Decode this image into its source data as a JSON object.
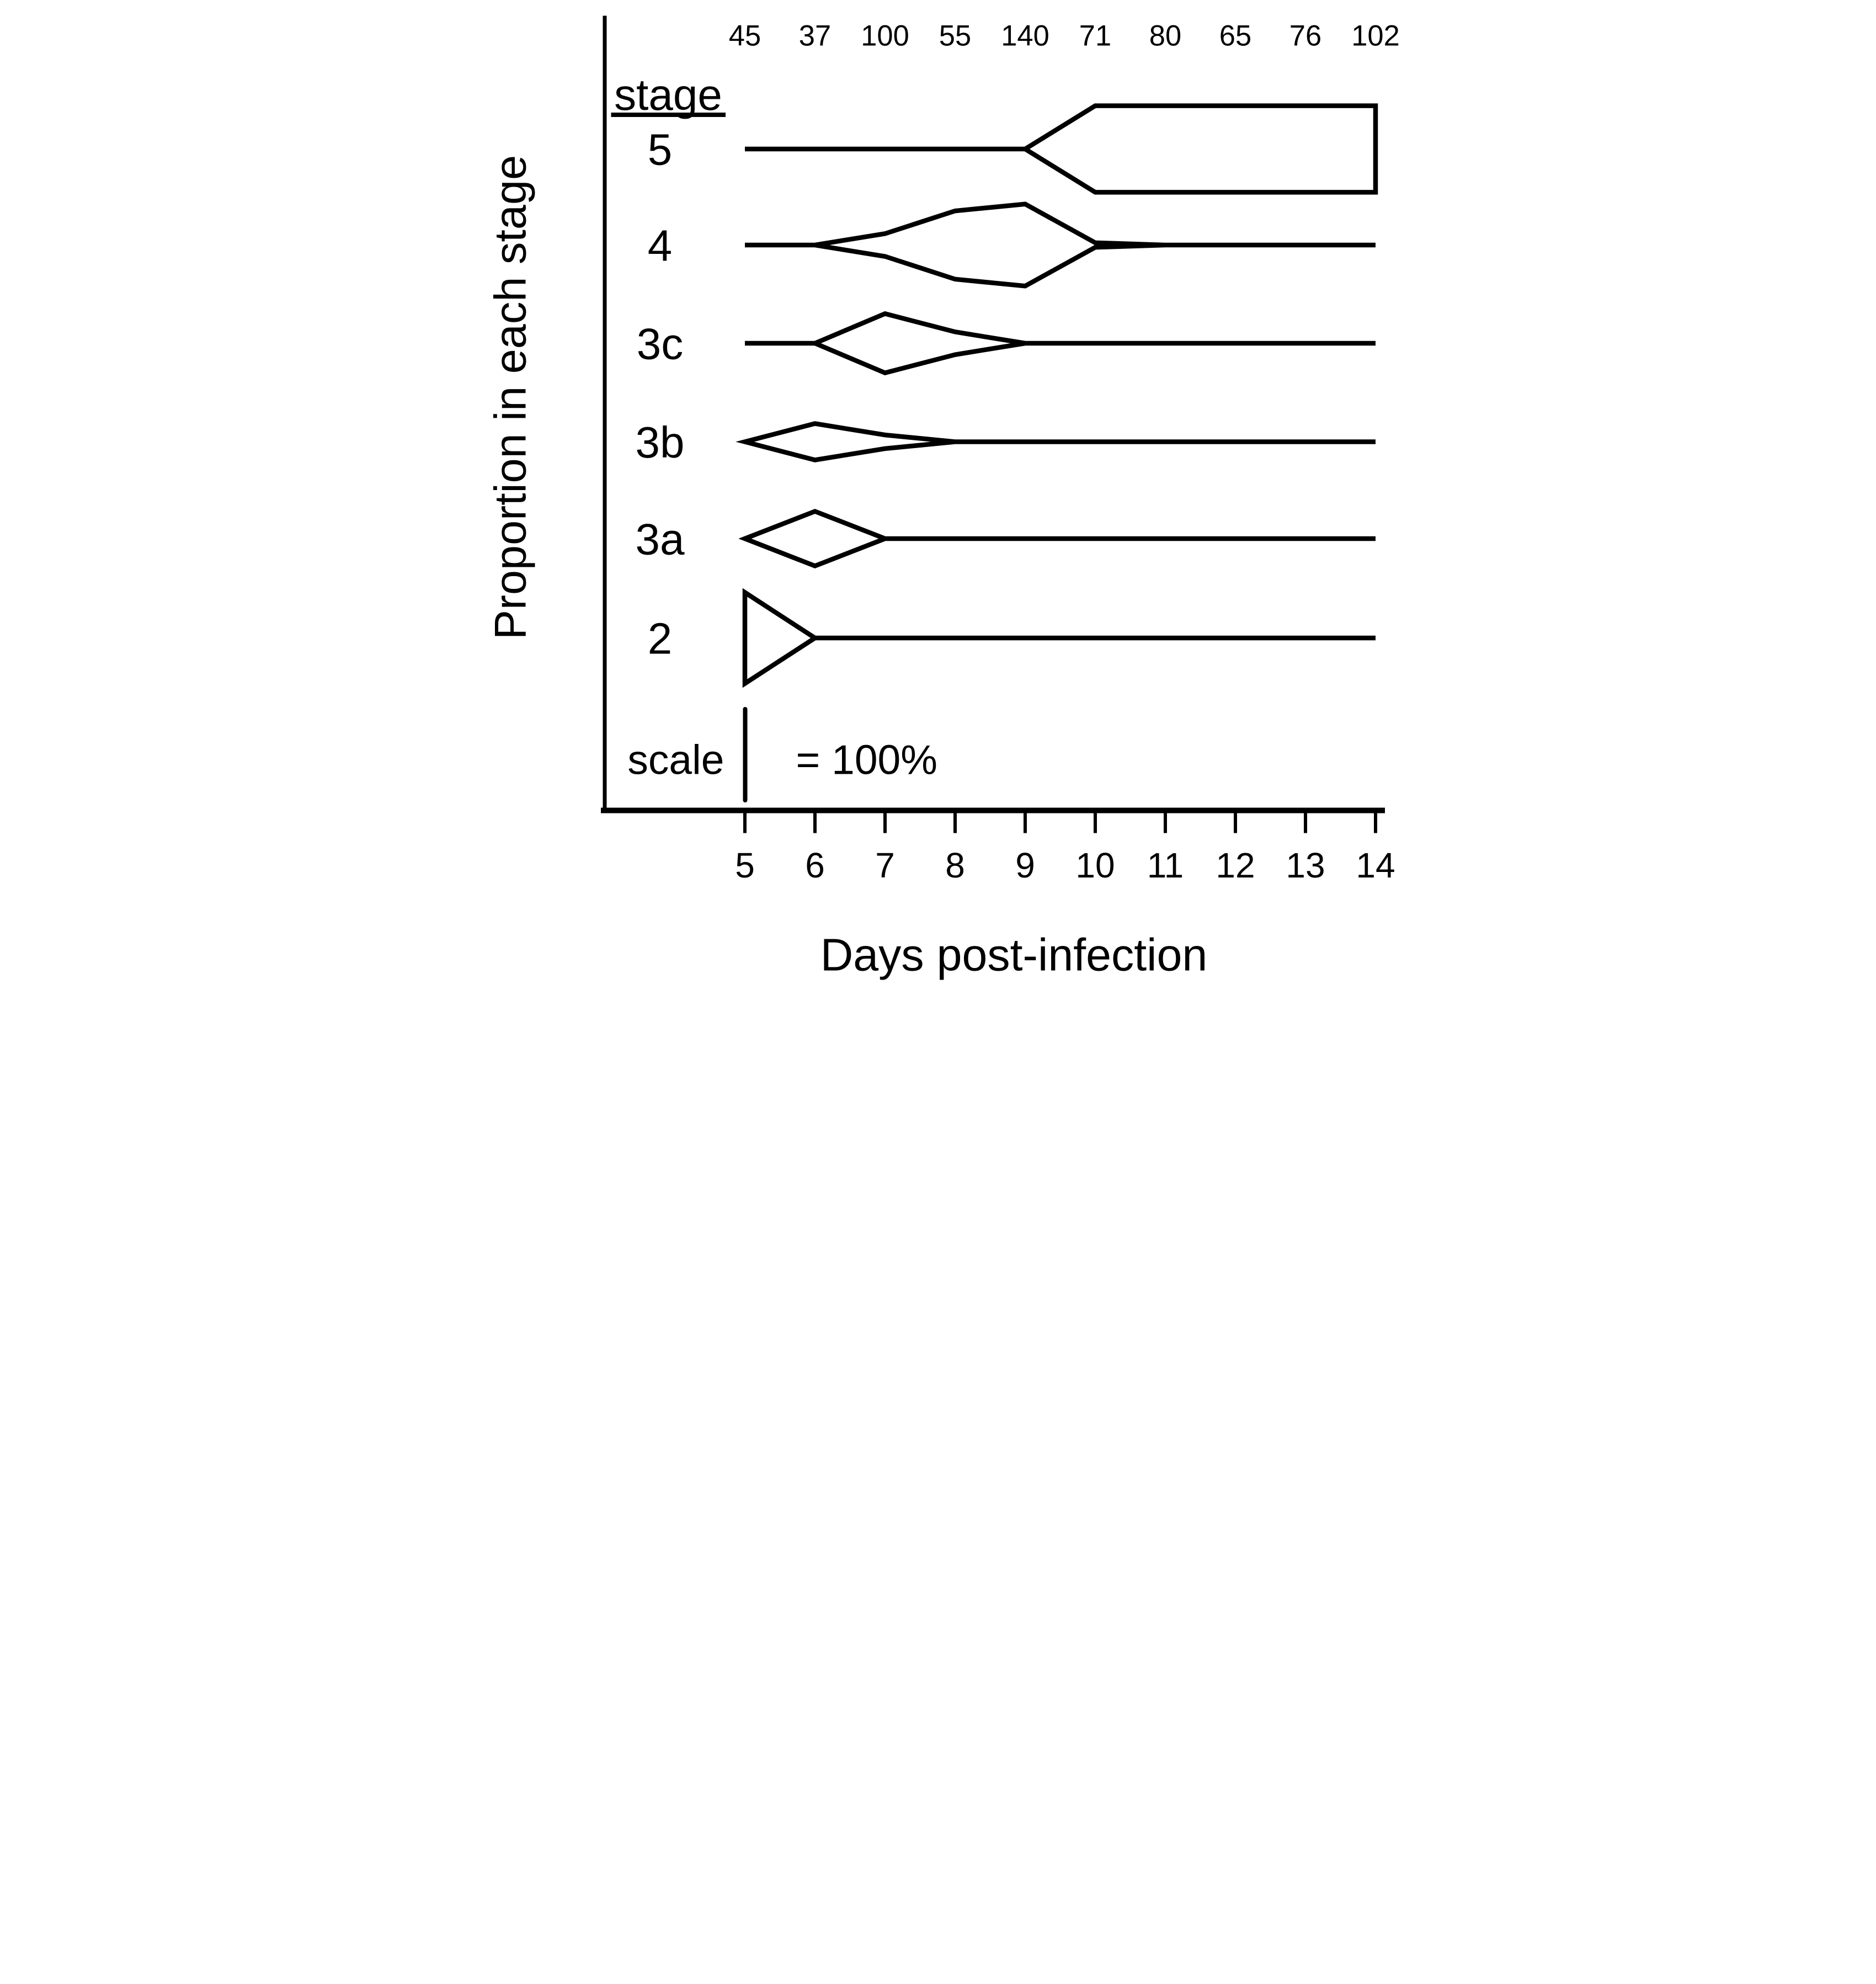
{
  "figure": {
    "background": "#ffffff",
    "ink": "#000000"
  },
  "chart_data": {
    "type": "kite",
    "title": "",
    "xlabel": "Days post-infection",
    "ylabel": "Proportion in each stage",
    "stage_column_header": "stage",
    "scale": {
      "label": "scale",
      "equals_label": "= 100%",
      "percent": 100
    },
    "x": [
      5,
      6,
      7,
      8,
      9,
      10,
      11,
      12,
      13,
      14
    ],
    "sample_sizes": [
      45,
      37,
      100,
      55,
      140,
      71,
      80,
      65,
      76,
      102
    ],
    "series": [
      {
        "stage": "5",
        "values_pct": [
          0,
          0,
          0,
          0,
          0,
          95,
          95,
          95,
          95,
          95
        ]
      },
      {
        "stage": "4",
        "values_pct": [
          0,
          0,
          25,
          75,
          90,
          5,
          0,
          0,
          0,
          0
        ]
      },
      {
        "stage": "3c",
        "values_pct": [
          0,
          0,
          65,
          25,
          0,
          0,
          0,
          0,
          0,
          0
        ]
      },
      {
        "stage": "3b",
        "values_pct": [
          0,
          40,
          15,
          0,
          0,
          0,
          0,
          0,
          0,
          0
        ]
      },
      {
        "stage": "3a",
        "values_pct": [
          0,
          60,
          0,
          0,
          0,
          0,
          0,
          0,
          0,
          0
        ]
      },
      {
        "stage": "2",
        "values_pct": [
          100,
          0,
          0,
          0,
          0,
          0,
          0,
          0,
          0,
          0
        ]
      }
    ],
    "x_axis": {
      "tick_labels": [
        "5",
        "6",
        "7",
        "8",
        "9",
        "10",
        "11",
        "12",
        "13",
        "14"
      ]
    },
    "layout_hints": {
      "grid": false,
      "legend": "none",
      "kites_centered_on_stage_rows": true,
      "scale_bar_is_full_kite_height": true
    }
  }
}
